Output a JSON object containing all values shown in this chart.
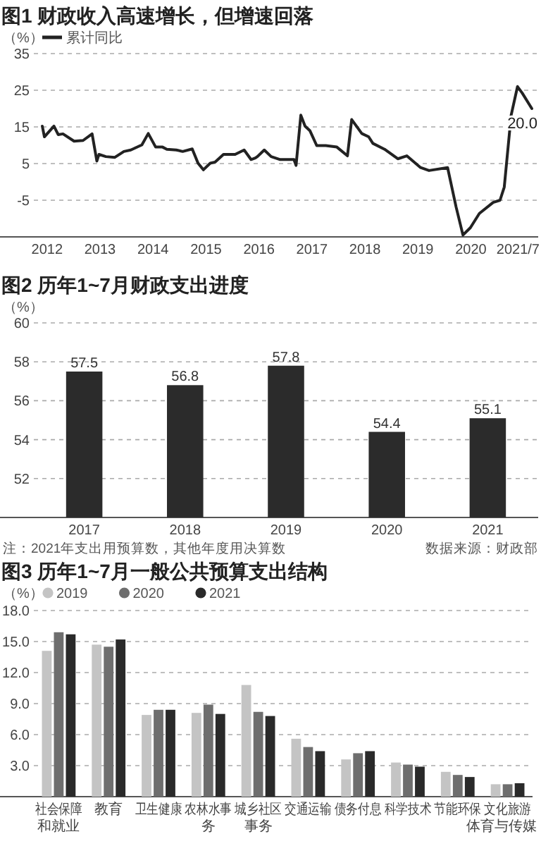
{
  "chart_data": [
    {
      "type": "line",
      "title": "图1 财政收入高速增长，但增速回落",
      "ylabel": "（%）",
      "legend": "top left",
      "grid": "y",
      "x": [
        2011.91,
        2011.95,
        2012.13,
        2012.21,
        2012.3,
        2012.51,
        2012.68,
        2012.85,
        2012.94,
        2012.98,
        2013.11,
        2013.28,
        2013.45,
        2013.58,
        2013.79,
        2013.91,
        2014.05,
        2014.18,
        2014.26,
        2014.44,
        2014.56,
        2014.74,
        2014.85,
        2014.95,
        2015.08,
        2015.17,
        2015.33,
        2015.55,
        2015.72,
        2015.85,
        2015.93,
        2015.97,
        2016.1,
        2016.23,
        2016.4,
        2016.66,
        2016.7,
        2016.79,
        2016.87,
        2016.96,
        2017.09,
        2017.26,
        2017.47,
        2017.67,
        2017.75,
        2017.94,
        2018.07,
        2018.15,
        2018.37,
        2018.62,
        2018.79,
        2019.05,
        2019.21,
        2019.56,
        2019.72,
        2019.85,
        2019.99,
        2020.16,
        2020.42,
        2020.55,
        2020.63,
        2020.76,
        2020.88,
        2020.97,
        2021.15
      ],
      "series": [
        {
          "name": "累计同比",
          "color": "#222222",
          "values": [
            15.2,
            12.3,
            15.2,
            12.9,
            13.1,
            11.1,
            11.3,
            13.1,
            5.7,
            7.5,
            6.9,
            6.7,
            8.3,
            8.7,
            10.1,
            13.2,
            9.5,
            9.5,
            8.9,
            8.7,
            8.3,
            9.0,
            5.1,
            3.3,
            5.1,
            5.4,
            7.5,
            7.5,
            8.7,
            6.1,
            6.5,
            6.9,
            8.7,
            6.9,
            6.1,
            6.1,
            4.5,
            18.2,
            15.2,
            14.0,
            9.9,
            9.9,
            9.5,
            7.1,
            17.0,
            13.2,
            12.3,
            10.5,
            8.9,
            6.3,
            7.1,
            3.9,
            3.1,
            3.9,
            -6.8,
            -14.5,
            -12.5,
            -8.6,
            -5.6,
            -5.0,
            -1.4,
            18.2,
            26.0,
            24.2,
            20.0
          ]
        }
      ],
      "xlim": [
        2011.75,
        2021.27
      ],
      "xticks": [
        2012,
        2013,
        2014,
        2015,
        2016,
        2017,
        2018,
        2019,
        2020,
        {
          "value": 2021,
          "label": "2021/7"
        }
      ],
      "ylim": [
        -15,
        35
      ],
      "yticks": [
        -5,
        5,
        15,
        25,
        35
      ],
      "line_style": "solid",
      "annotations": [
        {
          "text": "20.0",
          "x": 2021.15,
          "y": 20
        }
      ]
    },
    {
      "type": "bar",
      "title": "图2 历年1~7月财政支出进度",
      "ylabel": "（%）",
      "grid": "y",
      "data_labels": true,
      "categories": [
        "2017",
        "2018",
        "2019",
        "2020",
        "2021"
      ],
      "values": [
        57.5,
        56.8,
        57.8,
        54.4,
        55.1
      ],
      "color": "#2b2b2b",
      "ylim": [
        50,
        60
      ],
      "yticks": [
        52,
        54,
        56,
        58,
        60
      ],
      "annotations": [
        "注：2021年支出用预算数，其他年度用决算数",
        "数据来源：财政部"
      ]
    },
    {
      "type": "bar",
      "title": "图3  历年1~7月一般公共预算支出结构",
      "ylabel": "（%）",
      "grid": "y",
      "legend": "top left",
      "categories": [
        "社会保障和就业",
        "教育",
        "卫生健康",
        "农林水事务",
        "城乡社区事务",
        "交通运输",
        "债务付息",
        "科学技术",
        "节能环保",
        "文化旅游体育与传媒"
      ],
      "series": [
        {
          "name": "2019",
          "color": "#c4c4c4",
          "values": [
            14.1,
            14.7,
            7.9,
            8.1,
            10.8,
            5.6,
            3.6,
            3.3,
            2.4,
            1.2
          ]
        },
        {
          "name": "2020",
          "color": "#6e6e6e",
          "values": [
            15.9,
            14.5,
            8.4,
            8.9,
            8.2,
            4.8,
            4.2,
            3.1,
            2.1,
            1.2
          ]
        },
        {
          "name": "2021",
          "color": "#2a2a2a",
          "values": [
            15.7,
            15.2,
            8.4,
            8.0,
            7.8,
            4.4,
            4.4,
            2.9,
            1.9,
            1.3
          ]
        }
      ],
      "ylim": [
        0,
        18
      ],
      "yticks": [
        {
          "value": 3,
          "label": "3.0"
        },
        {
          "value": 6,
          "label": "6.0"
        },
        {
          "value": 9,
          "label": "9.0"
        },
        {
          "value": 12,
          "label": "12.0"
        },
        {
          "value": 15,
          "label": "15.0"
        },
        {
          "value": 18,
          "label": "18.0"
        }
      ]
    }
  ]
}
